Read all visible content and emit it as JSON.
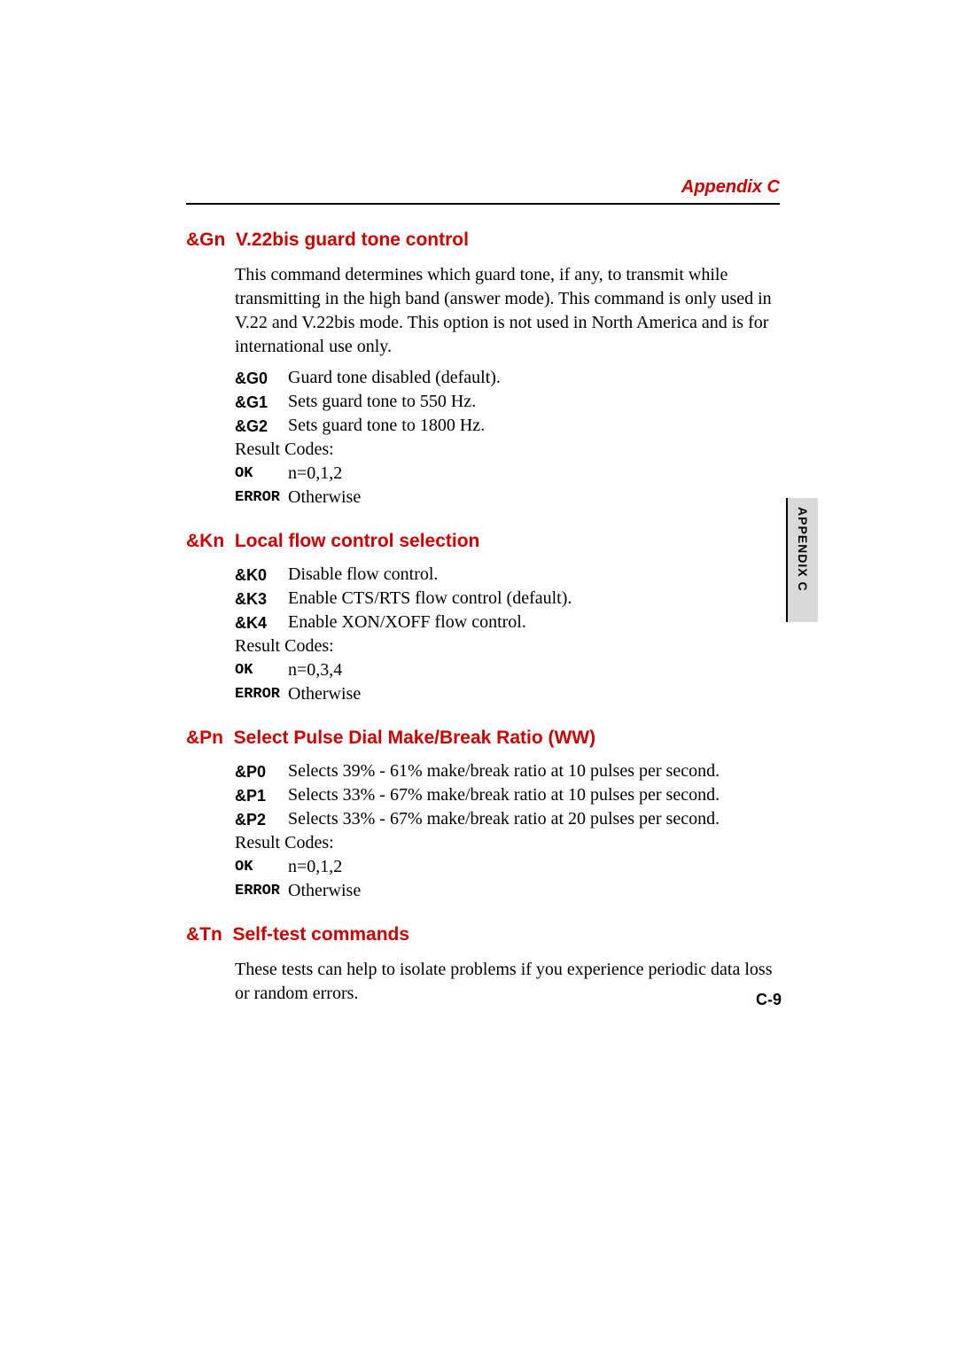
{
  "header": {
    "title": "Appendix C"
  },
  "side_tab": {
    "label": "APPENDIX C"
  },
  "page_number": "C-9",
  "sections": [
    {
      "cmd": "&Gn",
      "title": "V.22bis guard tone control",
      "intro": "This command determines which guard tone, if any, to transmit while transmitting in the high band (answer mode). This command is only used in V.22 and V.22bis mode. This option is not used in North America and is for international use only.",
      "options": [
        {
          "code": "&G0",
          "desc": "Guard tone disabled (default)."
        },
        {
          "code": "&G1",
          "desc": "Sets guard tone to 550 Hz."
        },
        {
          "code": "&G2",
          "desc": "Sets guard tone to 1800 Hz."
        }
      ],
      "result_label": "Result Codes:",
      "results": [
        {
          "code": "OK",
          "desc": "n=0,1,2"
        },
        {
          "code": "ERROR",
          "desc": "Otherwise"
        }
      ]
    },
    {
      "cmd": "&Kn",
      "title": "Local flow control selection",
      "intro": "",
      "options": [
        {
          "code": "&K0",
          "desc": "Disable flow control."
        },
        {
          "code": "&K3",
          "desc": "Enable CTS/RTS flow control (default)."
        },
        {
          "code": "&K4",
          "desc": "Enable XON/XOFF flow control."
        }
      ],
      "result_label": "Result Codes:",
      "results": [
        {
          "code": "OK",
          "desc": "n=0,3,4"
        },
        {
          "code": "ERROR",
          "desc": "Otherwise"
        }
      ]
    },
    {
      "cmd": "&Pn",
      "title": "Select Pulse Dial Make/Break Ratio (WW)",
      "intro": "",
      "options": [
        {
          "code": "&P0",
          "desc": "Selects 39% - 61% make/break ratio at 10 pulses per second."
        },
        {
          "code": "&P1",
          "desc": "Selects 33% - 67% make/break ratio at 10 pulses per second."
        },
        {
          "code": "&P2",
          "desc": "Selects 33% - 67% make/break ratio at 20 pulses per second."
        }
      ],
      "result_label": "Result Codes:",
      "results": [
        {
          "code": "OK",
          "desc": "n=0,1,2"
        },
        {
          "code": "ERROR",
          "desc": "Otherwise"
        }
      ]
    },
    {
      "cmd": "&Tn",
      "title": "Self-test commands",
      "intro": "These tests can help to isolate problems if you experience periodic data loss or random errors.",
      "options": [],
      "result_label": "",
      "results": []
    }
  ]
}
